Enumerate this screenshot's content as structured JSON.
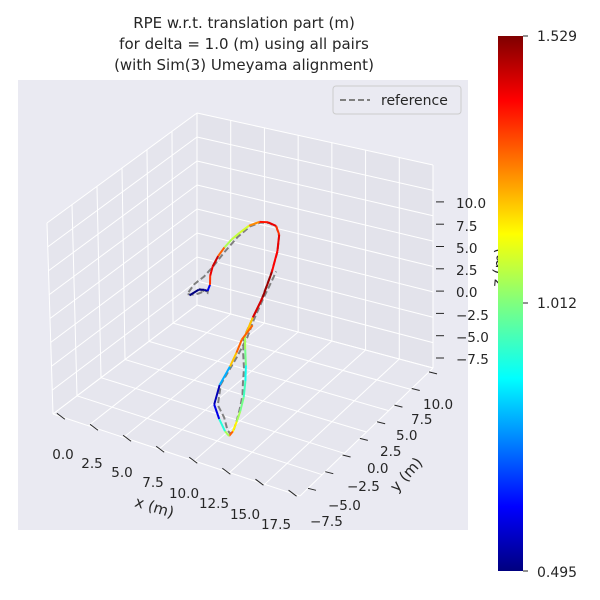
{
  "chart_data": {
    "type": "line",
    "title_lines": [
      "RPE w.r.t. translation part (m)",
      "for delta = 1.0 (m) using all pairs",
      "(with Sim(3) Umeyama alignment)"
    ],
    "xlabel": "x (m)",
    "ylabel": "y (m)",
    "zlabel": "z (m)",
    "x_ticks": [
      "0.0",
      "2.5",
      "5.0",
      "7.5",
      "10.0",
      "12.5",
      "15.0",
      "17.5"
    ],
    "y_ticks": [
      "−7.5",
      "−5.0",
      "−2.5",
      "0.0",
      "2.5",
      "5.0",
      "7.5",
      "10.0"
    ],
    "z_ticks": [
      "−7.5",
      "−5.0",
      "−2.5",
      "0.0",
      "2.5",
      "5.0",
      "7.5",
      "10.0"
    ],
    "legend": [
      {
        "label": "reference",
        "style": "dashed",
        "color": "#808080"
      }
    ],
    "legend_position": "top-right",
    "colormap": "jet",
    "colorbar_range": [
      0.495,
      1.529
    ],
    "colorbar_ticks": [
      "1.529",
      "1.012",
      "0.495"
    ],
    "grid": true,
    "pane_color": "#eaeaf2",
    "reference_path": [
      [
        0.15,
        0.18
      ],
      [
        0.55,
        0.17
      ],
      [
        0.85,
        0.19
      ],
      [
        1.25,
        0.2
      ],
      [
        1.55,
        0.19
      ],
      [
        1.4,
        0.4
      ],
      [
        0.95,
        0.15
      ],
      [
        0.5,
        -0.2
      ],
      [
        0.05,
        -0.45
      ],
      [
        -0.45,
        -0.6
      ],
      [
        -0.9,
        -0.7
      ],
      [
        -0.8,
        0.35
      ],
      [
        -0.2,
        1.3
      ],
      [
        0.1,
        2.4
      ],
      [
        0.35,
        3.9
      ],
      [
        0.8,
        5.6
      ],
      [
        1.5,
        6.9
      ],
      [
        2.5,
        7.6
      ],
      [
        3.6,
        7.9
      ],
      [
        4.8,
        7.9
      ],
      [
        5.9,
        7.3
      ],
      [
        7.0,
        6.0
      ],
      [
        8.0,
        4.0
      ],
      [
        8.9,
        1.6
      ],
      [
        9.3,
        -0.2
      ],
      [
        9.7,
        -1.8
      ],
      [
        10.9,
        -3.0
      ],
      [
        12.2,
        -4.1
      ],
      [
        13.3,
        -5.3
      ],
      [
        14.2,
        -6.2
      ],
      [
        15.0,
        -7.4
      ],
      [
        15.6,
        -8.5
      ],
      [
        15.9,
        -9.2
      ],
      [
        15.8,
        -9.6
      ],
      [
        15.1,
        -9.4
      ],
      [
        13.7,
        -8.6
      ],
      [
        11.9,
        -7.9
      ],
      [
        10.6,
        -6.2
      ],
      [
        10.4,
        -3.5
      ],
      [
        10.1,
        -1.6
      ],
      [
        9.5,
        0.0
      ],
      [
        9.0,
        1.8
      ],
      [
        8.7,
        3.2
      ],
      [
        8.4,
        4.5
      ]
    ],
    "estimate_path": [
      [
        -0.5,
        -0.7,
        0.495
      ],
      [
        0.2,
        0.1,
        0.5
      ],
      [
        0.9,
        0.3,
        0.52
      ],
      [
        1.4,
        0.35,
        0.6
      ],
      [
        1.2,
        0.9,
        1.35
      ],
      [
        0.5,
        1.6,
        1.42
      ],
      [
        0.05,
        2.4,
        1.45
      ],
      [
        -0.1,
        3.4,
        1.3
      ],
      [
        0.0,
        4.3,
        1.06
      ],
      [
        0.25,
        5.2,
        1.08
      ],
      [
        0.7,
        6.0,
        1.1
      ],
      [
        1.3,
        6.9,
        1.26
      ],
      [
        2.3,
        7.6,
        1.38
      ],
      [
        3.4,
        7.9,
        1.42
      ],
      [
        4.7,
        7.95,
        1.35
      ],
      [
        5.8,
        7.4,
        1.42
      ],
      [
        6.9,
        6.1,
        1.4
      ],
      [
        7.9,
        4.3,
        1.5
      ],
      [
        8.8,
        2.0,
        1.44
      ],
      [
        9.2,
        0.1,
        1.2
      ],
      [
        9.7,
        -1.6,
        1.05
      ],
      [
        10.8,
        -2.6,
        1.0
      ],
      [
        12.2,
        -3.8,
        0.9
      ],
      [
        13.4,
        -5.0,
        0.95
      ],
      [
        14.5,
        -6.3,
        1.0
      ],
      [
        15.2,
        -7.5,
        1.05
      ],
      [
        15.6,
        -8.4,
        1.15
      ],
      [
        15.9,
        -9.3,
        1.3
      ],
      [
        15.8,
        -9.8,
        1.05
      ],
      [
        14.9,
        -9.6,
        0.92
      ],
      [
        13.2,
        -8.9,
        0.6
      ],
      [
        11.4,
        -8.0,
        0.55
      ],
      [
        10.5,
        -6.3,
        0.8
      ],
      [
        10.3,
        -4.5,
        1.2
      ],
      [
        10.0,
        -3.2,
        1.3
      ],
      [
        9.6,
        -2.0,
        1.3
      ],
      [
        9.8,
        -0.5,
        1.3
      ]
    ]
  }
}
